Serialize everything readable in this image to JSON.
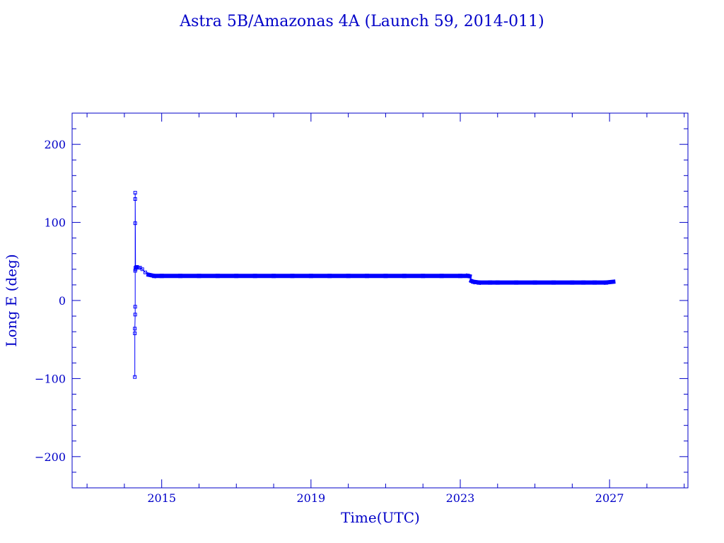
{
  "chart_data": {
    "type": "line",
    "title": "Astra 5B/Amazonas 4A (Launch 59, 2014-011)",
    "xlabel": "Time(UTC)",
    "ylabel": "Long E (deg)",
    "xlim": [
      2012.6,
      2029.1
    ],
    "ylim": [
      -240,
      240
    ],
    "x_ticks": [
      2015,
      2019,
      2023,
      2027
    ],
    "y_ticks": [
      -200,
      -100,
      0,
      100,
      200
    ],
    "grid": false,
    "line_color": "#0000ff",
    "axis_color": "#0000c8",
    "series": [
      {
        "marker": "square",
        "x": [
          2014.28,
          2014.28,
          2014.28,
          2014.29,
          2014.29,
          2014.29,
          2014.29,
          2014.29,
          2014.29,
          2014.3,
          2014.3,
          2014.32,
          2014.34,
          2014.38,
          2014.42,
          2014.48,
          2014.56,
          2014.65,
          2014.8,
          2015.0,
          2015.5,
          2016.0,
          2016.5,
          2017.0,
          2017.5,
          2018.0,
          2018.5,
          2019.0,
          2019.5,
          2020.0,
          2020.5,
          2021.0,
          2021.5,
          2022.0,
          2022.5,
          2023.0,
          2023.2,
          2023.25,
          2023.3,
          2023.35,
          2023.5,
          2023.8,
          2024.0,
          2024.5,
          2025.0,
          2025.5,
          2026.0,
          2026.3,
          2026.6,
          2026.9,
          2027.1
        ],
        "y": [
          -98,
          -42,
          -36,
          -18,
          -8,
          38,
          99,
          130,
          138,
          40,
          42,
          43,
          43,
          42,
          42,
          40,
          36,
          33,
          31.5,
          31.5,
          31.5,
          31.5,
          31.5,
          31.5,
          31.5,
          31.5,
          31.5,
          31.5,
          31.5,
          31.5,
          31.5,
          31.5,
          31.5,
          31.5,
          31.5,
          31.5,
          31.5,
          31,
          25,
          24,
          23,
          23,
          23,
          23,
          23,
          23,
          23,
          23,
          23,
          23,
          24
        ]
      }
    ]
  }
}
